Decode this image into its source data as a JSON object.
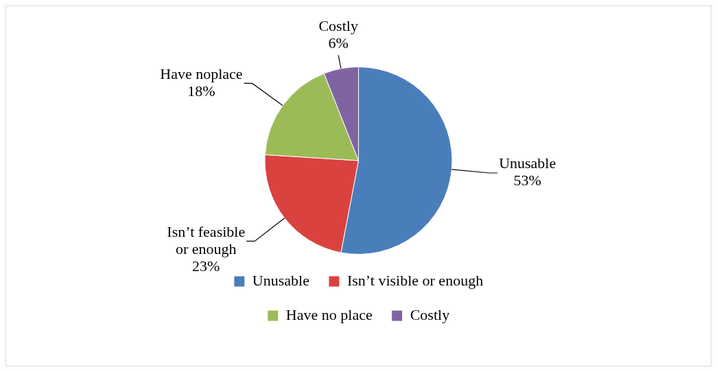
{
  "chart_data": {
    "type": "pie",
    "categories": [
      "Unusable",
      "Isn’t visible or enough",
      "Have no place",
      "Costly"
    ],
    "values": [
      53,
      23,
      18,
      6
    ],
    "colors": [
      "#4a7ebb",
      "#d9423f",
      "#9bbb59",
      "#8064a2"
    ],
    "value_labels": [
      "Unusable\n53%",
      "Isn’t feasible\nor enough\n23%",
      "Have noplace\n18%",
      "Costly\n6%"
    ],
    "legend": "bottom"
  }
}
